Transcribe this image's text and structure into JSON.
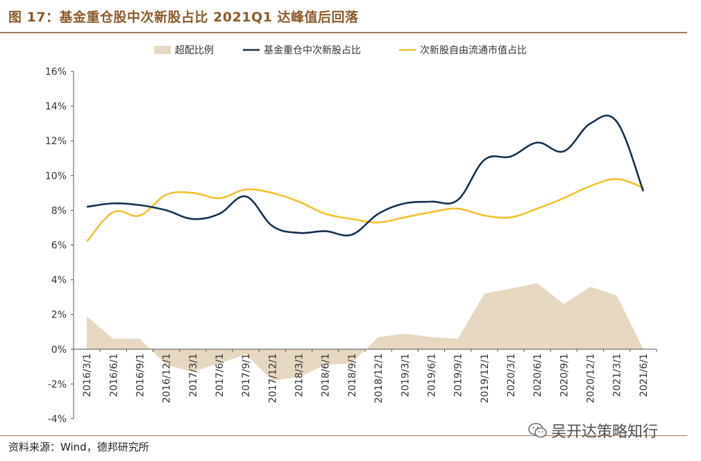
{
  "title": "图 17：基金重仓股中次新股占比 2021Q1 达峰值后回落",
  "source": "资料来源：Wind，德邦研究所",
  "watermark": "吴开达策略知行",
  "colors": {
    "area": "#e6d7c1",
    "navy": "#14304f",
    "gold": "#f2c12e",
    "brand": "#8c5a2a"
  },
  "chart_data": {
    "type": "line",
    "categories": [
      "2016/3/1",
      "2016/6/1",
      "2016/9/1",
      "2016/12/1",
      "2017/3/1",
      "2017/6/1",
      "2017/9/1",
      "2017/12/1",
      "2018/3/1",
      "2018/6/1",
      "2018/9/1",
      "2018/12/1",
      "2019/3/1",
      "2019/6/1",
      "2019/9/1",
      "2019/12/1",
      "2020/3/1",
      "2020/6/1",
      "2020/9/1",
      "2020/12/1",
      "2021/3/1",
      "2021/6/1"
    ],
    "ylim": [
      -4,
      16
    ],
    "yticks": [
      -4,
      -2,
      0,
      2,
      4,
      6,
      8,
      10,
      12,
      14,
      16
    ],
    "ytick_labels": [
      "-4%",
      "-2%",
      "0%",
      "2%",
      "4%",
      "6%",
      "8%",
      "10%",
      "12%",
      "14%",
      "16%"
    ],
    "series": [
      {
        "name": "超配比例",
        "kind": "area",
        "color": "#e6d7c1",
        "values": [
          1.9,
          0.6,
          0.6,
          -0.9,
          -1.3,
          -0.8,
          -0.3,
          -1.8,
          -1.6,
          -0.9,
          -0.8,
          0.7,
          0.9,
          0.7,
          0.6,
          3.2,
          3.5,
          3.8,
          2.6,
          3.6,
          3.1,
          0.0
        ]
      },
      {
        "name": "基金重仓中次新股占比",
        "kind": "line",
        "color": "#14304f",
        "values": [
          8.2,
          8.4,
          8.3,
          8.0,
          7.5,
          7.8,
          8.8,
          7.1,
          6.7,
          6.8,
          6.6,
          7.8,
          8.4,
          8.5,
          8.6,
          10.9,
          11.1,
          11.9,
          11.4,
          13.0,
          13.1,
          9.1
        ]
      },
      {
        "name": "次新股自由流通市值占比",
        "kind": "line",
        "color": "#f2c12e",
        "values": [
          6.2,
          7.9,
          7.7,
          8.9,
          9.0,
          8.7,
          9.2,
          9.0,
          8.5,
          7.8,
          7.5,
          7.3,
          7.6,
          7.9,
          8.1,
          7.7,
          7.6,
          8.1,
          8.7,
          9.4,
          9.8,
          9.3
        ]
      }
    ]
  }
}
